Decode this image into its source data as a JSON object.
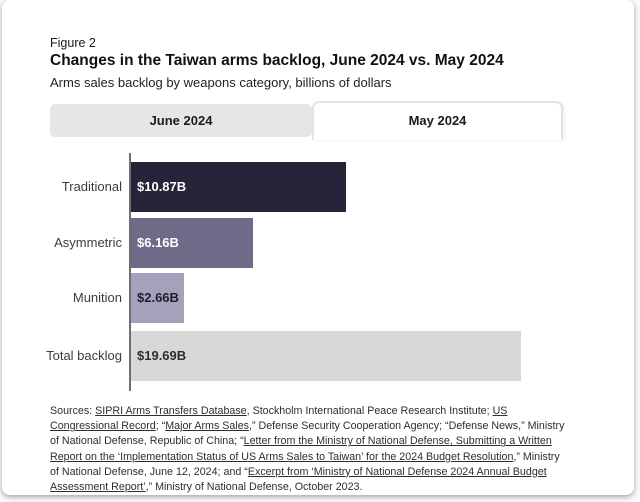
{
  "figure": {
    "label": "Figure 2",
    "title": "Changes in the Taiwan arms backlog, June 2024 vs. May 2024",
    "subtitle": "Arms sales backlog by weapons category, billions of dollars"
  },
  "tabs": [
    {
      "label": "June 2024",
      "active": true
    },
    {
      "label": "May 2024",
      "active": false
    }
  ],
  "chart_data": {
    "type": "bar",
    "orientation": "horizontal",
    "title": "Arms sales backlog by weapons category, billions of dollars",
    "categories": [
      "Traditional",
      "Asymmetric",
      "Munition",
      "Total backlog"
    ],
    "values": [
      10.87,
      6.16,
      2.66,
      19.69
    ],
    "value_labels": [
      "$10.87B",
      "$6.16B",
      "$2.66B",
      "$19.69B"
    ],
    "bar_colors": [
      "#272338",
      "#6f6a88",
      "#a4a1bb",
      "#d9d7d7"
    ],
    "label_colors": [
      "#ffffff",
      "#ffffff",
      "#211d30",
      "#2e2c33"
    ],
    "xlim": [
      0,
      19.69
    ],
    "unit": "billions of dollars",
    "grid": false,
    "legend": "none"
  },
  "sources": {
    "parts": [
      {
        "t": "Sources: ",
        "u": false
      },
      {
        "t": "SIPRI Arms Transfers Database",
        "u": true
      },
      {
        "t": ", Stockholm International Peace Research Institute; ",
        "u": false
      },
      {
        "t": "US Congressional Record",
        "u": true
      },
      {
        "t": "; “",
        "u": false
      },
      {
        "t": "Major Arms Sales",
        "u": true
      },
      {
        "t": ",” Defense Security Cooperation Agency; “Defense News,” Ministry of National Defense, Republic of China; “",
        "u": false
      },
      {
        "t": "Letter from the Ministry of National Defense, Submitting a Written Report on the ‘Implementation Status of US Arms Sales to Taiwan’ for the 2024 Budget Resolution",
        "u": true
      },
      {
        "t": ",” Ministry of National Defense, June 12, 2024; and “",
        "u": false
      },
      {
        "t": "Excerpt from ‘Ministry of National Defense 2024 Annual Budget Assessment Report’",
        "u": true
      },
      {
        "t": ",” Ministry of National Defense, October 2023.",
        "u": false
      }
    ]
  }
}
